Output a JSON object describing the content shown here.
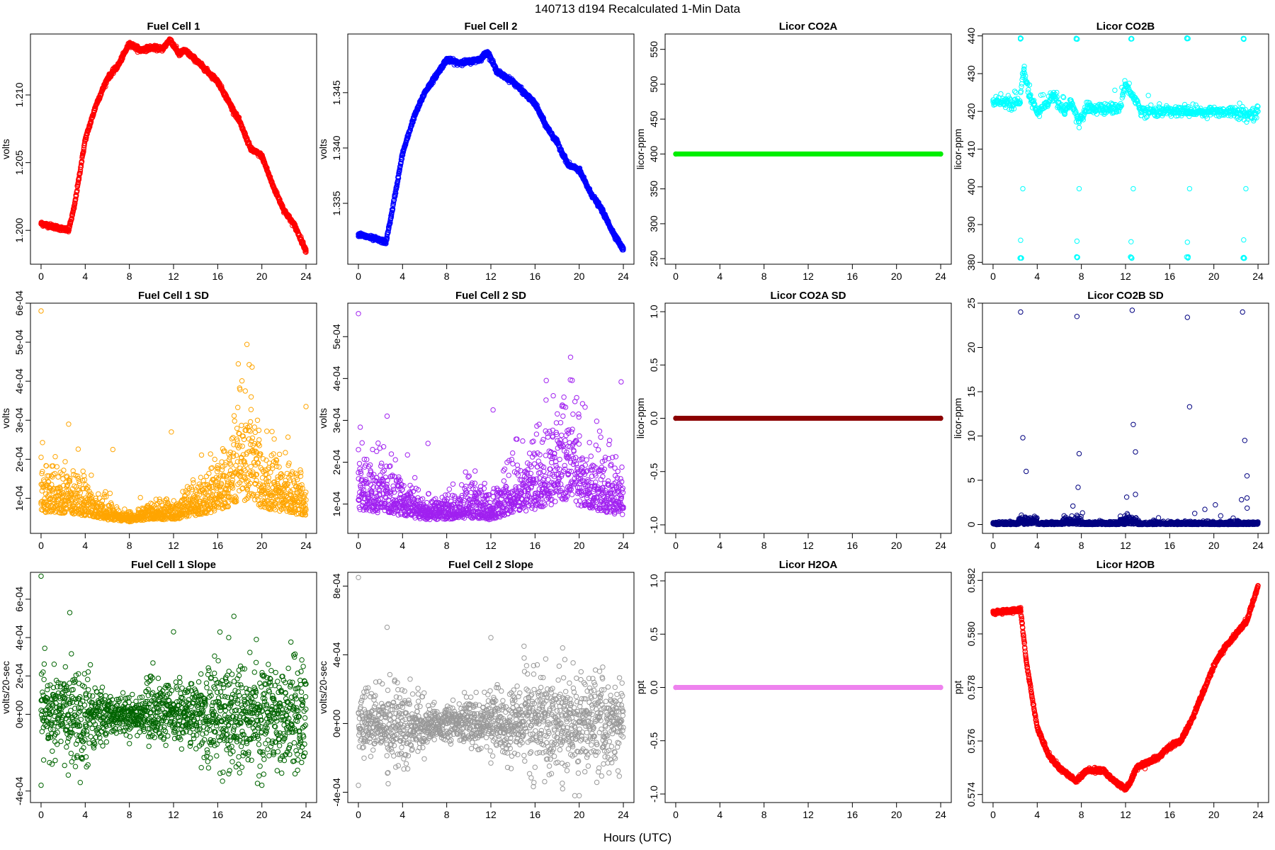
{
  "figure": {
    "title": "140713   d194   Recalculated 1-Min Data",
    "xlabel": "Hours (UTC)"
  },
  "chart_data": [
    {
      "id": "fc1",
      "type": "scatter",
      "title": "Fuel Cell 1",
      "ylabel": "volts",
      "color": "#ff0000",
      "xlim": [
        -0.96,
        24.96
      ],
      "ylim": [
        1.1975,
        1.2145
      ],
      "xticks": [
        "0",
        "4",
        "8",
        "12",
        "16",
        "20",
        "24"
      ],
      "yticks": [
        "1.200",
        "1.205",
        "1.210"
      ],
      "x": [
        0,
        2.5,
        3,
        4,
        5,
        6,
        7,
        8,
        9,
        10,
        11,
        11.7,
        12.5,
        13,
        14,
        15,
        16,
        17,
        18,
        19,
        20,
        21,
        22,
        23,
        24
      ],
      "y": [
        1.2005,
        1.2,
        1.2017,
        1.2067,
        1.2093,
        1.2112,
        1.2122,
        1.2138,
        1.2133,
        1.2135,
        1.2134,
        1.2141,
        1.213,
        1.2133,
        1.2126,
        1.2118,
        1.211,
        1.2095,
        1.208,
        1.206,
        1.2055,
        1.2033,
        1.2015,
        1.2003,
        1.1985
      ]
    },
    {
      "id": "fc2",
      "type": "scatter",
      "title": "Fuel Cell 2",
      "ylabel": "volts",
      "color": "#0000ff",
      "xlim": [
        -0.96,
        24.96
      ],
      "ylim": [
        1.3295,
        1.3503
      ],
      "xticks": [
        "0",
        "4",
        "8",
        "12",
        "16",
        "20",
        "24"
      ],
      "yticks": [
        "1.335",
        "1.340",
        "1.345"
      ],
      "x": [
        0,
        2.5,
        3,
        4,
        5,
        6,
        7,
        8,
        9,
        10,
        11,
        11.7,
        12.5,
        13,
        14,
        15,
        16,
        17,
        18,
        19,
        20,
        21,
        22,
        23,
        24
      ],
      "y": [
        1.3322,
        1.3315,
        1.334,
        1.3395,
        1.3427,
        1.345,
        1.3465,
        1.348,
        1.3477,
        1.3478,
        1.348,
        1.3487,
        1.347,
        1.3466,
        1.346,
        1.345,
        1.344,
        1.342,
        1.3405,
        1.3385,
        1.338,
        1.336,
        1.3345,
        1.3325,
        1.3308
      ]
    },
    {
      "id": "co2a",
      "type": "scatter",
      "title": "Licor CO2A",
      "ylabel": "licor-ppm",
      "color": "#00ee00",
      "xlim": [
        -0.96,
        24.96
      ],
      "ylim": [
        242,
        572
      ],
      "xticks": [
        "0",
        "4",
        "8",
        "12",
        "16",
        "20",
        "24"
      ],
      "yticks": [
        "250",
        "300",
        "350",
        "400",
        "450",
        "500",
        "550"
      ],
      "x": [
        0,
        24
      ],
      "y": [
        400,
        400
      ]
    },
    {
      "id": "co2b",
      "type": "scatter",
      "title": "Licor CO2B",
      "ylabel": "licor-ppm",
      "color": "#00ffff",
      "xlim": [
        -0.96,
        24.96
      ],
      "ylim": [
        379.5,
        440.5
      ],
      "xticks": [
        "0",
        "4",
        "8",
        "12",
        "16",
        "20",
        "24"
      ],
      "yticks": [
        "380",
        "390",
        "400",
        "410",
        "420",
        "430",
        "440"
      ],
      "x": [
        0,
        2.4,
        2.8,
        3.3,
        4.0,
        5.5,
        6.5,
        7.0,
        7.8,
        8.5,
        10,
        11.5,
        12.0,
        12.5,
        13.5,
        15,
        16,
        17.5,
        18,
        20,
        22,
        23,
        24
      ],
      "y": [
        422.5,
        422,
        431,
        424,
        419.5,
        424,
        419.5,
        423,
        417,
        421,
        420.5,
        421,
        427,
        425,
        420,
        420,
        420,
        420,
        420,
        420,
        420,
        419,
        420
      ]
    },
    {
      "id": "fc1sd",
      "type": "scatter",
      "title": "Fuel Cell 1 SD",
      "ylabel": "volts",
      "color": "#ffa500",
      "xlim": [
        -0.96,
        24.96
      ],
      "ylim": [
        1e-05,
        0.0006
      ],
      "xticks": [
        "0",
        "4",
        "8",
        "12",
        "16",
        "20",
        "24"
      ],
      "yticks": [
        "1e-04",
        "2e-04",
        "3e-04",
        "4e-04",
        "5e-04",
        "6e-04"
      ],
      "x": [
        0,
        2,
        4,
        6,
        8,
        10,
        12,
        14,
        16,
        18,
        19,
        20,
        22,
        24
      ],
      "y": [
        9e-05,
        8e-05,
        7e-05,
        5e-05,
        4e-05,
        5e-05,
        5e-05,
        7e-05,
        9e-05,
        0.00014,
        0.00016,
        0.00011,
        9e-05,
        7e-05
      ]
    },
    {
      "id": "fc2sd",
      "type": "scatter",
      "title": "Fuel Cell 2 SD",
      "ylabel": "volts",
      "color": "#a020f0",
      "xlim": [
        -0.96,
        24.96
      ],
      "ylim": [
        3e-05,
        0.00058
      ],
      "xticks": [
        "0",
        "4",
        "8",
        "12",
        "16",
        "20",
        "24"
      ],
      "yticks": [
        "1e-04",
        "2e-04",
        "3e-04",
        "4e-04",
        "5e-04"
      ],
      "x": [
        0,
        2,
        4,
        6,
        8,
        10,
        12,
        14,
        16,
        18,
        19,
        20,
        22,
        24
      ],
      "y": [
        0.00011,
        0.0001,
        9e-05,
        7e-05,
        7e-05,
        8e-05,
        7e-05,
        0.0001,
        0.00012,
        0.00015,
        0.00017,
        0.00013,
        0.00011,
        9e-05
      ]
    },
    {
      "id": "co2asd",
      "type": "scatter",
      "title": "Licor CO2A SD",
      "ylabel": "licor-ppm",
      "color": "#8b0000",
      "xlim": [
        -0.96,
        24.96
      ],
      "ylim": [
        -1.08,
        1.08
      ],
      "xticks": [
        "0",
        "4",
        "8",
        "12",
        "16",
        "20",
        "24"
      ],
      "yticks": [
        "-1.0",
        "-0.5",
        "0.0",
        "0.5",
        "1.0"
      ],
      "x": [
        0,
        24
      ],
      "y": [
        0,
        0
      ]
    },
    {
      "id": "co2bsd",
      "type": "scatter",
      "title": "Licor CO2B SD",
      "ylabel": "licor-ppm",
      "color": "#000080",
      "xlim": [
        -0.96,
        24.96
      ],
      "ylim": [
        -1,
        25
      ],
      "xticks": [
        "0",
        "4",
        "8",
        "12",
        "16",
        "20",
        "24"
      ],
      "yticks": [
        "0",
        "5",
        "10",
        "15",
        "20",
        "25"
      ],
      "x": [
        0,
        2.5,
        2.7,
        3,
        7.6,
        7.8,
        12.6,
        12.7,
        12.9,
        17.6,
        17.8,
        22.6,
        22.8,
        23
      ],
      "y": [
        0.2,
        24,
        9.8,
        6,
        23.5,
        8,
        24.2,
        11.3,
        8.2,
        23.4,
        13.3,
        24,
        9.5,
        5.5
      ]
    },
    {
      "id": "fc1slope",
      "type": "scatter",
      "title": "Fuel Cell 1 Slope",
      "ylabel": "volts/20-sec",
      "color": "#006400",
      "xlim": [
        -0.96,
        24.96
      ],
      "ylim": [
        -0.00046,
        0.00074
      ],
      "xticks": [
        "0",
        "4",
        "8",
        "12",
        "16",
        "20",
        "24"
      ],
      "yticks": [
        "-4e-04",
        "0e+00",
        "2e-04",
        "4e-04",
        "6e-04"
      ],
      "x": [
        0,
        2.6,
        12,
        17,
        19.5,
        20
      ],
      "y": [
        0.00072,
        0.00053,
        0.00043,
        0.0004,
        0.00039,
        -0.00037
      ]
    },
    {
      "id": "fc2slope",
      "type": "scatter",
      "title": "Fuel Cell 2 Slope",
      "ylabel": "volts/20-sec",
      "color": "#999999",
      "xlim": [
        -0.96,
        24.96
      ],
      "ylim": [
        -0.00046,
        0.00088
      ],
      "xticks": [
        "0",
        "4",
        "8",
        "12",
        "16",
        "20",
        "24"
      ],
      "yticks": [
        "-4e-04",
        "0e+00",
        "4e-04",
        "8e-04"
      ],
      "x": [
        0,
        2.6,
        12,
        15,
        18.5,
        20
      ],
      "y": [
        0.00085,
        0.00056,
        0.0005,
        0.00045,
        0.00044,
        -0.00042
      ]
    },
    {
      "id": "h2oa",
      "type": "scatter",
      "title": "Licor H2OA",
      "ylabel": "ppt",
      "color": "#ee82ee",
      "xlim": [
        -0.96,
        24.96
      ],
      "ylim": [
        -1.08,
        1.08
      ],
      "xticks": [
        "0",
        "4",
        "8",
        "12",
        "16",
        "20",
        "24"
      ],
      "yticks": [
        "-1.0",
        "-0.5",
        "0.0",
        "0.5",
        "1.0"
      ],
      "x": [
        0,
        24
      ],
      "y": [
        0,
        0
      ]
    },
    {
      "id": "h2ob",
      "type": "scatter",
      "title": "Licor H2OB",
      "ylabel": "ppt",
      "color": "#ff0000",
      "xlim": [
        -0.96,
        24.96
      ],
      "ylim": [
        0.5737,
        0.5823
      ],
      "xticks": [
        "0",
        "4",
        "8",
        "12",
        "16",
        "20",
        "24"
      ],
      "yticks": [
        "0.574",
        "0.576",
        "0.578",
        "0.580",
        "0.582"
      ],
      "x": [
        0,
        2.5,
        3,
        4,
        5,
        6,
        7.5,
        8.5,
        10,
        11,
        12,
        12.5,
        13,
        14,
        15,
        16,
        17,
        18,
        19,
        20,
        21,
        22,
        23,
        24
      ],
      "y": [
        0.5808,
        0.5809,
        0.579,
        0.5765,
        0.5755,
        0.575,
        0.5745,
        0.5749,
        0.5749,
        0.5745,
        0.5742,
        0.5745,
        0.575,
        0.5752,
        0.5754,
        0.5758,
        0.576,
        0.5768,
        0.5778,
        0.5788,
        0.5795,
        0.58,
        0.5805,
        0.5818
      ]
    }
  ]
}
